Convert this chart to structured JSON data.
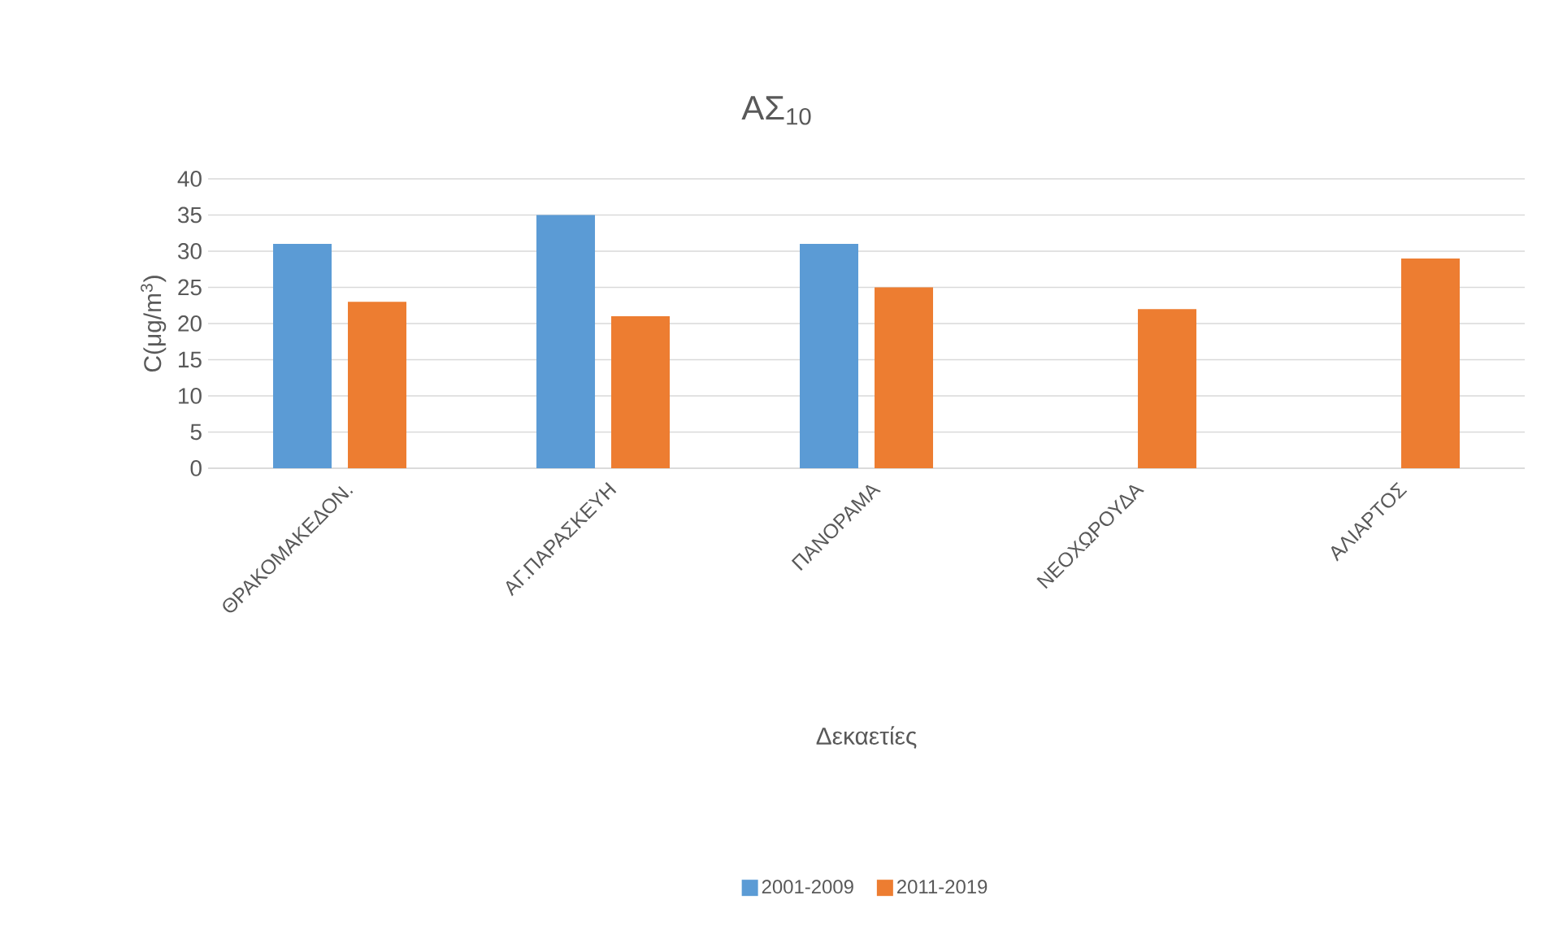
{
  "chart_data": {
    "type": "bar",
    "title": "ΑΣ$_{10}$",
    "xlabel": "Δεκαετίες",
    "ylabel": "C(μg/m$^{3}$)",
    "categories": [
      "ΘΡΑΚΟΜΑΚΕΔΟΝ.",
      "ΑΓ.ΠΑΡΑΣΚΕΥΗ",
      "ΠΑΝΟΡΑΜΑ",
      "ΝΕΟΧΩΡΟΥΔΑ",
      "ΑΛΙΑΡΤΟΣ"
    ],
    "series": [
      {
        "name": "2001-2009",
        "color": "#5b9bd5",
        "values": [
          31,
          35,
          31,
          null,
          null
        ]
      },
      {
        "name": "2011-2019",
        "color": "#ed7d31",
        "values": [
          23,
          21,
          25,
          22,
          29
        ]
      }
    ],
    "ylim": [
      0,
      40
    ],
    "yticks": [
      0,
      5,
      10,
      15,
      20,
      25,
      30,
      35,
      40
    ],
    "grid": "y",
    "legend": "bottom"
  }
}
